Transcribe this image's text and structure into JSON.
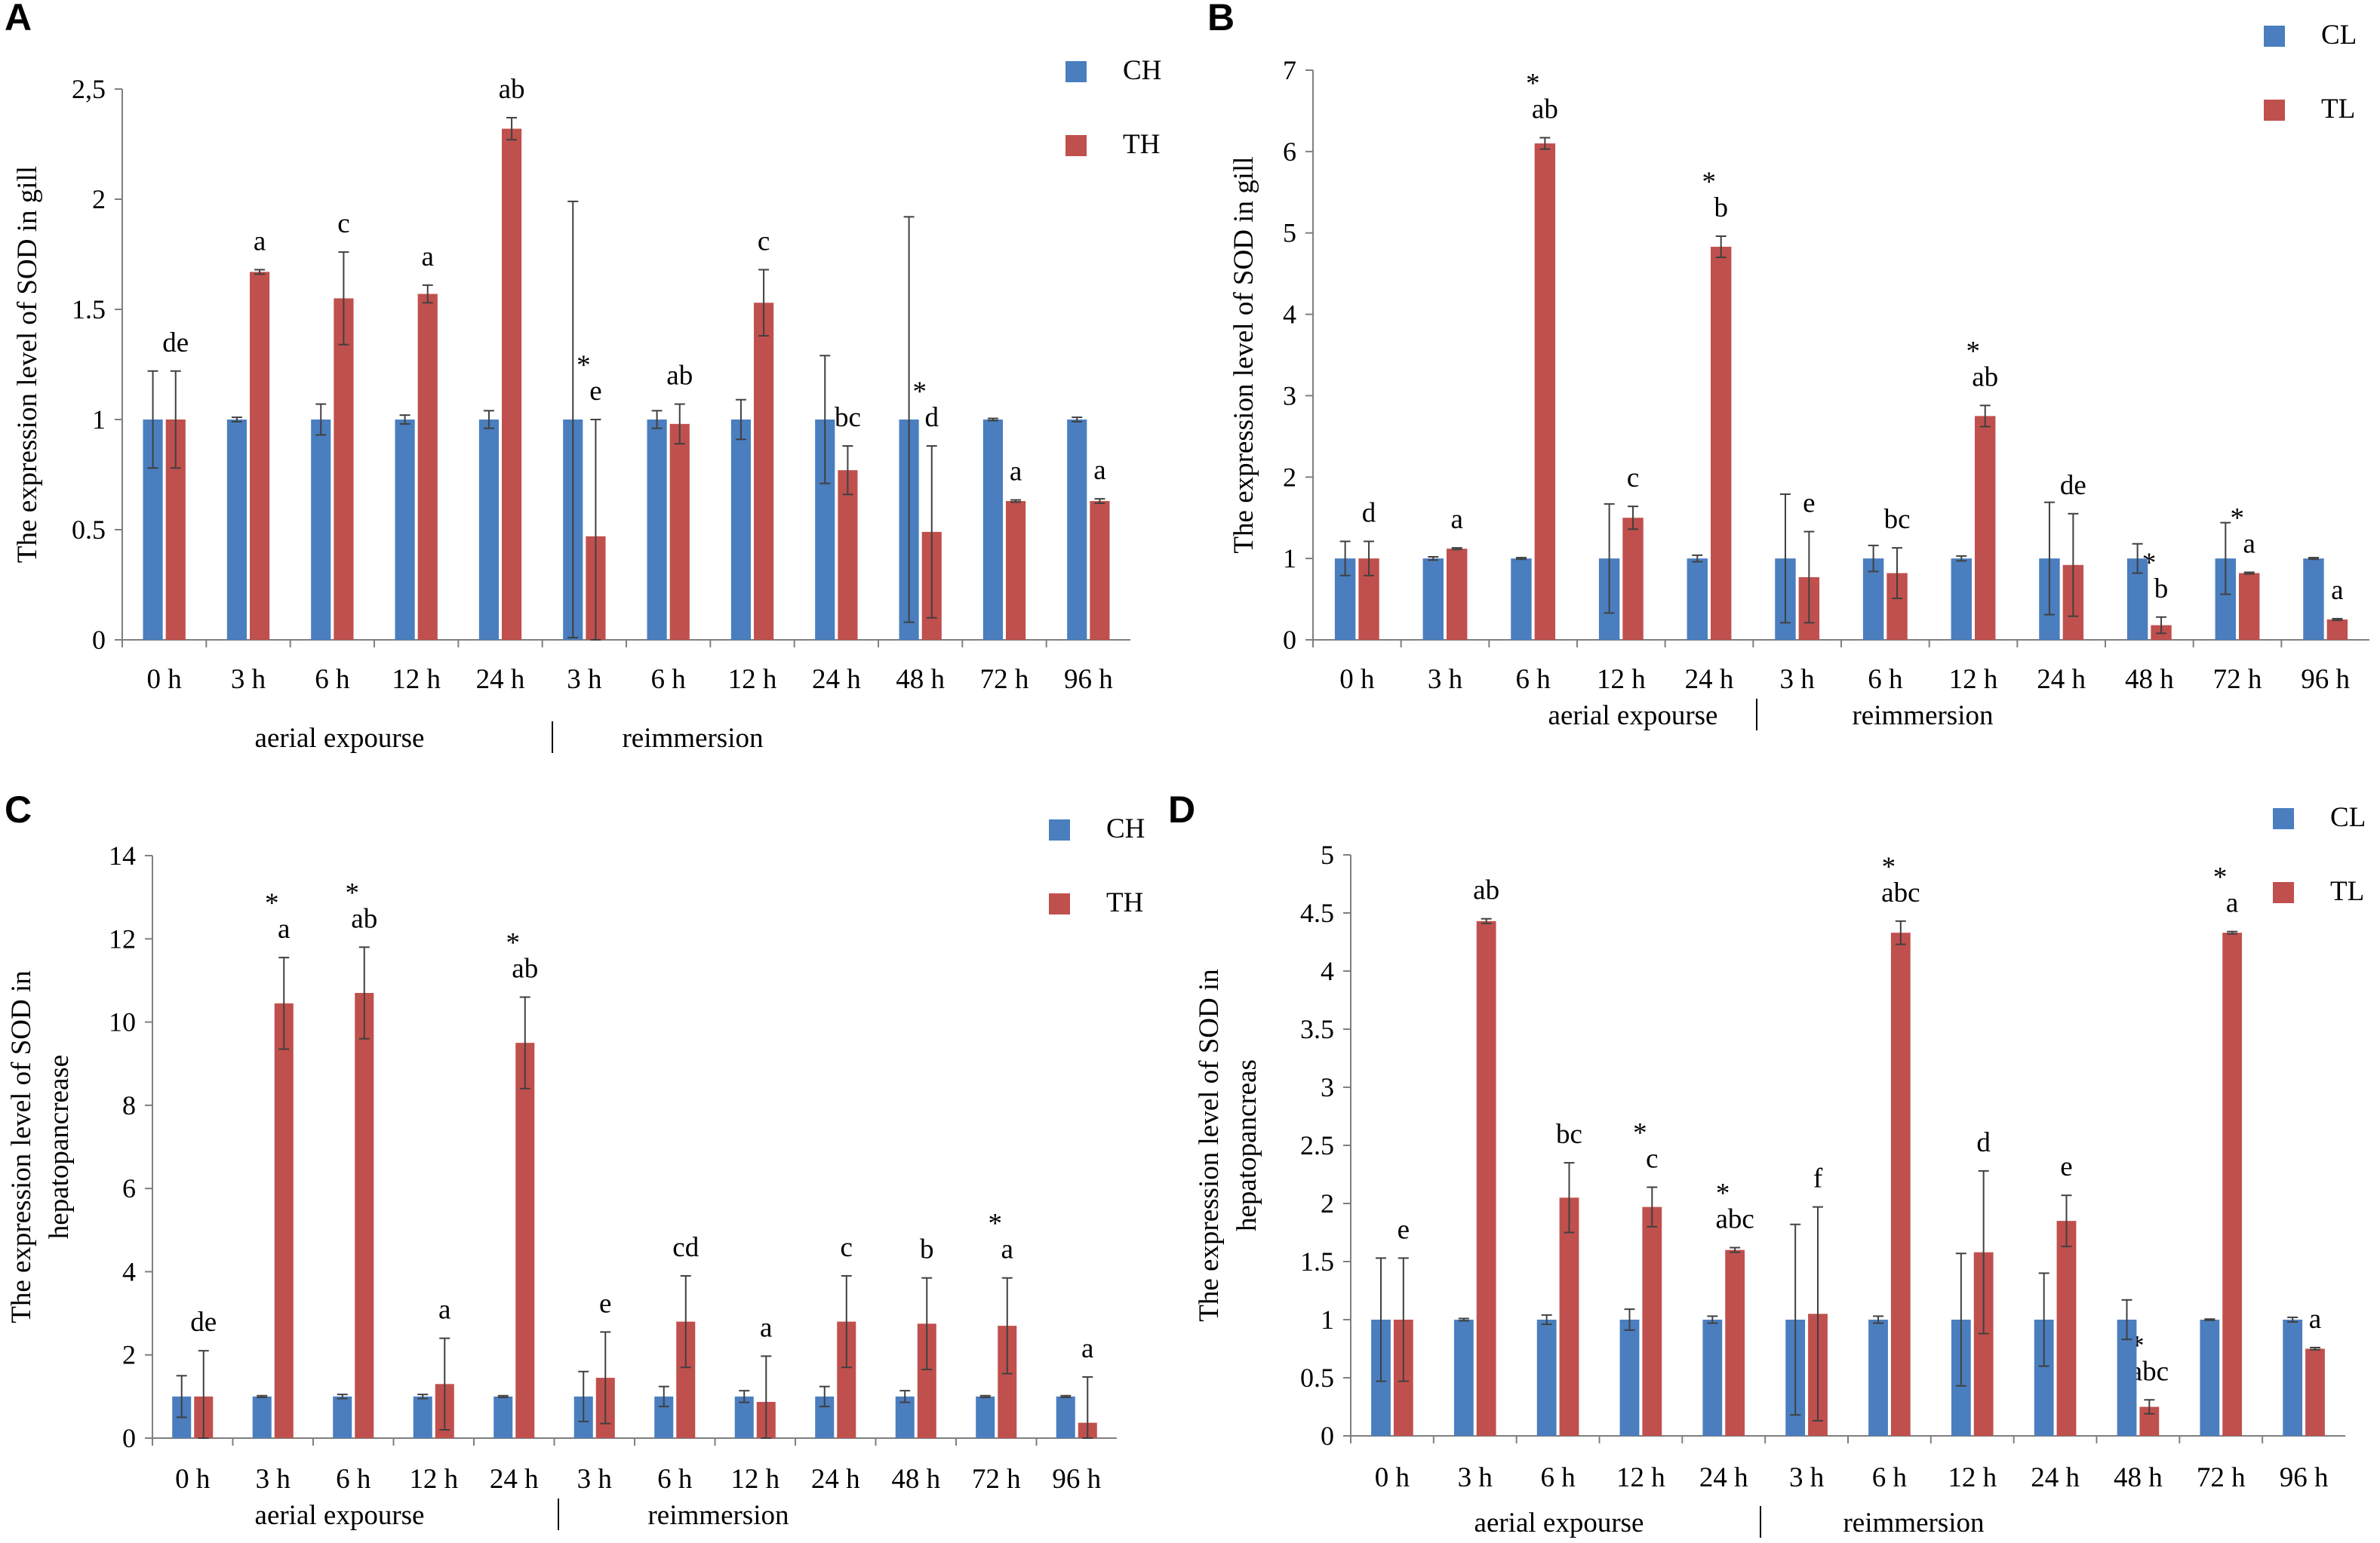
{
  "colors": {
    "control": "#4a7ebf",
    "treatment": "#c0504d",
    "axis": "#7f7f7f",
    "error_bar": "#404040"
  },
  "chart_data": [
    {
      "panel": "A",
      "type": "bar",
      "ylabel": "The expression level of SOD in gill",
      "ylim": [
        0,
        2.5
      ],
      "yticks": [
        "0",
        "0.5",
        "1",
        "1.5",
        "2",
        "2,5"
      ],
      "categories": [
        "0 h",
        "3 h",
        "6 h",
        "12 h",
        "24 h",
        "3 h",
        "6 h",
        "12 h",
        "24 h",
        "48 h",
        "72 h",
        "96 h"
      ],
      "phases": [
        "aerial expourse",
        "reimmersion"
      ],
      "series": [
        {
          "name": "CH",
          "values": [
            1,
            1,
            1,
            1,
            1,
            1,
            1,
            1,
            1,
            1,
            1,
            1
          ],
          "errors": [
            0.22,
            0.01,
            0.07,
            0.02,
            0.04,
            0.99,
            0.04,
            0.09,
            0.29,
            0.92,
            0.005,
            0.01
          ]
        },
        {
          "name": "TH",
          "values": [
            1,
            1.67,
            1.55,
            1.57,
            2.32,
            0.47,
            0.98,
            1.53,
            0.77,
            0.49,
            0.63,
            0.63
          ],
          "errors": [
            0.22,
            0.01,
            0.21,
            0.04,
            0.05,
            0.53,
            0.09,
            0.15,
            0.11,
            0.39,
            0.005,
            0.01
          ]
        }
      ],
      "labels": [
        "de",
        "a",
        "c",
        "a",
        "ab",
        "e",
        "ab",
        "c",
        "bc",
        "d",
        "a",
        "a"
      ],
      "stars": [
        false,
        false,
        false,
        false,
        false,
        true,
        false,
        false,
        false,
        true,
        false,
        false
      ]
    },
    {
      "panel": "B",
      "type": "bar",
      "ylabel": "The expression level of SOD in gill",
      "ylim": [
        0,
        7
      ],
      "yticks": [
        "0",
        "1",
        "2",
        "3",
        "4",
        "5",
        "6",
        "7"
      ],
      "categories": [
        "0 h",
        "3 h",
        "6 h",
        "12 h",
        "24 h",
        "3 h",
        "6 h",
        "12 h",
        "24 h",
        "48 h",
        "72 h",
        "96 h"
      ],
      "phases": [
        "aerial expourse",
        "reimmersion"
      ],
      "series": [
        {
          "name": "CL",
          "values": [
            1,
            1,
            1,
            1,
            1,
            1,
            1,
            1,
            1,
            1,
            1,
            1
          ],
          "errors": [
            0.21,
            0.02,
            0.01,
            0.67,
            0.04,
            0.79,
            0.16,
            0.03,
            0.69,
            0.18,
            0.44,
            0.01
          ]
        },
        {
          "name": "TL",
          "values": [
            1,
            1.12,
            6.1,
            1.5,
            4.83,
            0.77,
            0.82,
            2.75,
            0.92,
            0.18,
            0.82,
            0.25
          ],
          "errors": [
            0.21,
            0.01,
            0.07,
            0.14,
            0.13,
            0.56,
            0.31,
            0.13,
            0.63,
            0.1,
            0.01,
            0.01
          ]
        }
      ],
      "labels": [
        "d",
        "a",
        "ab",
        "c",
        "b",
        "e",
        "bc",
        "ab",
        "de",
        "b",
        "a",
        "a"
      ],
      "stars": [
        false,
        false,
        true,
        false,
        true,
        false,
        false,
        true,
        false,
        true,
        true,
        false
      ]
    },
    {
      "panel": "C",
      "type": "bar",
      "ylabel": [
        "The expression level of SOD in",
        "hepatopancrease"
      ],
      "ylim": [
        0,
        14
      ],
      "yticks": [
        "0",
        "2",
        "4",
        "6",
        "8",
        "10",
        "12",
        "14"
      ],
      "categories": [
        "0 h",
        "3 h",
        "6 h",
        "12 h",
        "24 h",
        "3 h",
        "6 h",
        "12 h",
        "24 h",
        "48 h",
        "72 h",
        "96 h"
      ],
      "phases": [
        "aerial expourse",
        "reimmersion"
      ],
      "series": [
        {
          "name": "CH",
          "values": [
            1,
            1,
            1,
            1,
            1,
            1,
            1,
            1,
            1,
            1,
            1,
            1
          ],
          "errors": [
            0.5,
            0.02,
            0.05,
            0.05,
            0.02,
            0.6,
            0.24,
            0.14,
            0.24,
            0.14,
            0.02,
            0.02
          ]
        },
        {
          "name": "TH",
          "values": [
            1,
            10.45,
            10.7,
            1.3,
            9.5,
            1.45,
            2.8,
            0.87,
            2.8,
            2.75,
            2.7,
            0.37
          ],
          "errors": [
            1.1,
            1.1,
            1.1,
            1.1,
            1.1,
            1.1,
            1.1,
            1.1,
            1.1,
            1.1,
            1.15,
            1.1
          ]
        }
      ],
      "labels": [
        "de",
        "a",
        "ab",
        "a",
        "ab",
        "e",
        "cd",
        "a",
        "c",
        "b",
        "a",
        "a"
      ],
      "stars": [
        false,
        true,
        true,
        false,
        true,
        false,
        false,
        false,
        false,
        false,
        true,
        false
      ]
    },
    {
      "panel": "D",
      "type": "bar",
      "ylabel": [
        "The expression level of SOD in",
        "hepatopancreas"
      ],
      "ylim": [
        0,
        5
      ],
      "yticks": [
        "0",
        "0.5",
        "1",
        "1.5",
        "2",
        "2.5",
        "3",
        "3.5",
        "4",
        "4.5",
        "5"
      ],
      "categories": [
        "0 h",
        "3 h",
        "6 h",
        "12 h",
        "24 h",
        "3 h",
        "6 h",
        "12 h",
        "24 h",
        "48 h",
        "72 h",
        "96 h"
      ],
      "phases": [
        "aerial expourse",
        "reimmersion"
      ],
      "series": [
        {
          "name": "CL",
          "values": [
            1,
            1,
            1,
            1,
            1,
            1,
            1,
            1,
            1,
            1,
            1,
            1
          ],
          "errors": [
            0.53,
            0.01,
            0.04,
            0.09,
            0.03,
            0.82,
            0.03,
            0.57,
            0.4,
            0.17,
            0.005,
            0.02
          ]
        },
        {
          "name": "TL",
          "values": [
            1,
            4.43,
            2.05,
            1.97,
            1.6,
            1.05,
            4.33,
            1.58,
            1.85,
            0.25,
            4.33,
            0.75
          ],
          "errors": [
            0.53,
            0.02,
            0.3,
            0.17,
            0.02,
            0.92,
            0.1,
            0.7,
            0.22,
            0.06,
            0.01,
            0.01
          ]
        }
      ],
      "labels": [
        "e",
        "ab",
        "bc",
        "c",
        "abc",
        "f",
        "abc",
        "d",
        "e",
        "abc",
        "a",
        "a"
      ],
      "stars": [
        false,
        false,
        false,
        true,
        true,
        false,
        true,
        false,
        false,
        true,
        true,
        false
      ]
    }
  ]
}
